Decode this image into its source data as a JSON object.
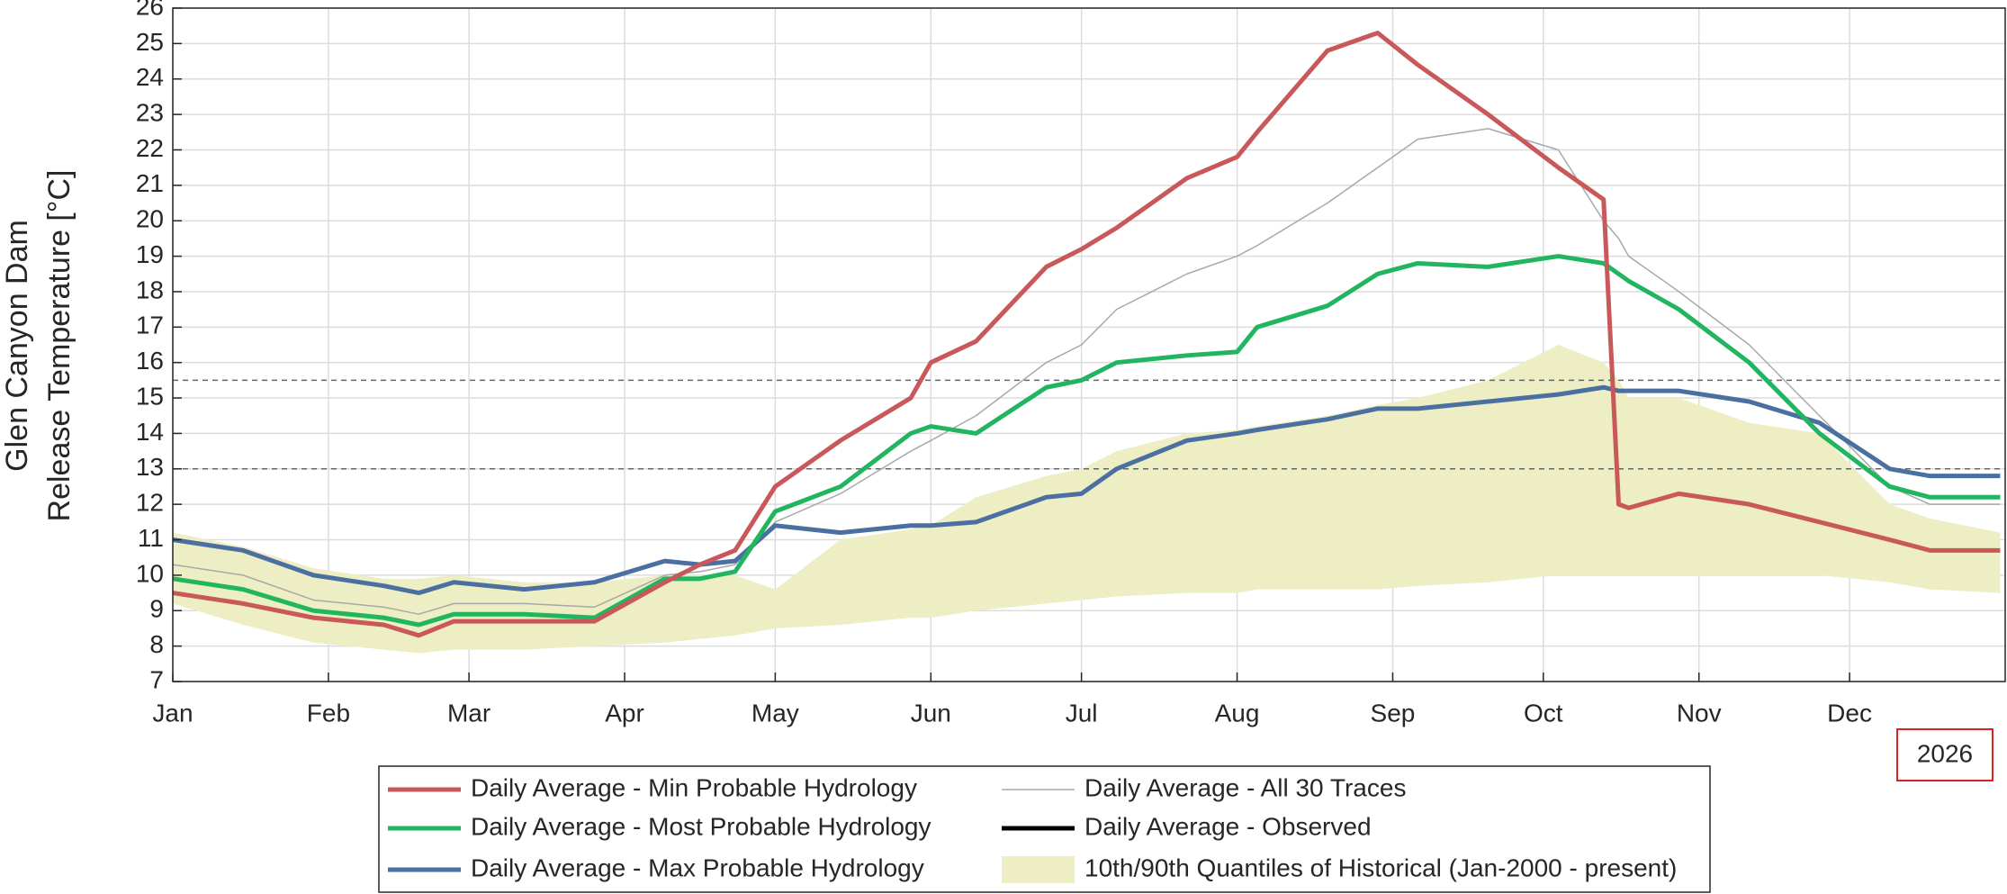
{
  "chart_data": {
    "type": "line",
    "y_label_lines": [
      "Glen Canyon Dam",
      "Release Temperature [°C]"
    ],
    "year_label": "2026",
    "x": [
      0,
      14,
      28,
      42,
      49,
      56,
      70,
      84,
      98,
      105,
      112,
      120,
      133,
      147,
      151,
      160,
      174,
      181,
      188,
      202,
      212,
      216,
      230,
      240,
      248,
      262,
      276,
      285,
      288,
      290,
      300,
      314,
      328,
      342,
      350,
      364
    ],
    "xlim": [
      0,
      365
    ],
    "xticks": [
      {
        "value": 0,
        "label": "Jan"
      },
      {
        "value": 31,
        "label": "Feb"
      },
      {
        "value": 59,
        "label": "Mar"
      },
      {
        "value": 90,
        "label": "Apr"
      },
      {
        "value": 120,
        "label": "May"
      },
      {
        "value": 151,
        "label": "Jun"
      },
      {
        "value": 181,
        "label": "Jul"
      },
      {
        "value": 212,
        "label": "Aug"
      },
      {
        "value": 243,
        "label": "Sep"
      },
      {
        "value": 273,
        "label": "Oct"
      },
      {
        "value": 304,
        "label": "Nov"
      },
      {
        "value": 334,
        "label": "Dec"
      }
    ],
    "ylim": [
      7,
      26
    ],
    "yticks": [
      7,
      8,
      9,
      10,
      11,
      12,
      13,
      14,
      15,
      16,
      17,
      18,
      19,
      20,
      21,
      22,
      23,
      24,
      25,
      26
    ],
    "grid": true,
    "hlines": [
      15.5,
      13
    ],
    "band": {
      "name": "10th/90th Quantiles of Historical (Jan-2000 - present)",
      "color": "#eeeec4",
      "upper": [
        11.2,
        10.8,
        10.2,
        9.9,
        9.9,
        10.0,
        9.8,
        9.8,
        10.0,
        10.0,
        10.0,
        9.6,
        11.0,
        11.3,
        11.4,
        12.2,
        12.8,
        13.0,
        13.5,
        14.0,
        14.1,
        14.2,
        14.5,
        14.8,
        15.0,
        15.5,
        16.5,
        16.0,
        15.5,
        15.0,
        15.0,
        14.3,
        14.0,
        12.0,
        11.6,
        11.2
      ],
      "lower": [
        9.2,
        8.6,
        8.1,
        7.9,
        7.8,
        7.9,
        7.9,
        8.0,
        8.1,
        8.2,
        8.3,
        8.5,
        8.6,
        8.8,
        8.8,
        9.0,
        9.2,
        9.3,
        9.4,
        9.5,
        9.5,
        9.6,
        9.6,
        9.6,
        9.7,
        9.8,
        10.0,
        10.0,
        10.0,
        10.0,
        10.0,
        10.0,
        10.0,
        9.8,
        9.6,
        9.5
      ]
    },
    "series": [
      {
        "name": "Daily Average - Min Probable Hydrology",
        "color": "#c8585a",
        "width": 5,
        "values": [
          9.5,
          9.2,
          8.8,
          8.6,
          8.3,
          8.7,
          8.7,
          8.7,
          9.8,
          10.3,
          10.7,
          12.5,
          13.8,
          15.0,
          16.0,
          16.6,
          18.7,
          19.2,
          19.8,
          21.2,
          21.8,
          22.5,
          24.8,
          25.3,
          24.4,
          23.0,
          21.5,
          20.6,
          12.0,
          11.9,
          12.3,
          12.0,
          11.5,
          11.0,
          10.7,
          10.7
        ]
      },
      {
        "name": "Daily Average - Most Probable Hydrology",
        "color": "#22b560",
        "width": 5,
        "values": [
          9.9,
          9.6,
          9.0,
          8.8,
          8.6,
          8.9,
          8.9,
          8.8,
          9.9,
          9.9,
          10.1,
          11.8,
          12.5,
          14.0,
          14.2,
          14.0,
          15.3,
          15.5,
          16.0,
          16.2,
          16.3,
          17.0,
          17.6,
          18.5,
          18.8,
          18.7,
          19.0,
          18.8,
          18.5,
          18.3,
          17.5,
          16.0,
          14.0,
          12.5,
          12.2,
          12.2
        ]
      },
      {
        "name": "Daily Average - Max Probable Hydrology",
        "color": "#4a6fa0",
        "width": 5,
        "values": [
          11.0,
          10.7,
          10.0,
          9.7,
          9.5,
          9.8,
          9.6,
          9.8,
          10.4,
          10.3,
          10.4,
          11.4,
          11.2,
          11.4,
          11.4,
          11.5,
          12.2,
          12.3,
          13.0,
          13.8,
          14.0,
          14.1,
          14.4,
          14.7,
          14.7,
          14.9,
          15.1,
          15.3,
          15.2,
          15.2,
          15.2,
          14.9,
          14.3,
          13.0,
          12.8,
          12.8
        ]
      },
      {
        "name": "Daily Average - All 30 Traces",
        "color": "#a8a8a8",
        "width": 1.5,
        "values": [
          10.3,
          10.0,
          9.3,
          9.1,
          8.9,
          9.2,
          9.2,
          9.1,
          10.0,
          10.1,
          10.3,
          11.5,
          12.3,
          13.5,
          13.8,
          14.5,
          16.0,
          16.5,
          17.5,
          18.5,
          19.0,
          19.3,
          20.5,
          21.5,
          22.3,
          22.6,
          22.0,
          20.0,
          19.5,
          19.0,
          18.0,
          16.5,
          14.5,
          12.5,
          12.0,
          12.0
        ]
      },
      {
        "name": "Daily Average - Observed",
        "color": "#000000",
        "width": 5,
        "values": [
          null,
          null,
          null,
          null,
          null,
          null,
          null,
          null,
          null,
          null,
          null,
          null,
          null,
          null,
          null,
          null,
          null,
          null,
          null,
          null,
          null,
          null,
          null,
          null,
          null,
          null,
          null,
          null,
          null,
          null,
          null,
          null,
          null,
          null,
          null,
          null
        ]
      }
    ]
  }
}
